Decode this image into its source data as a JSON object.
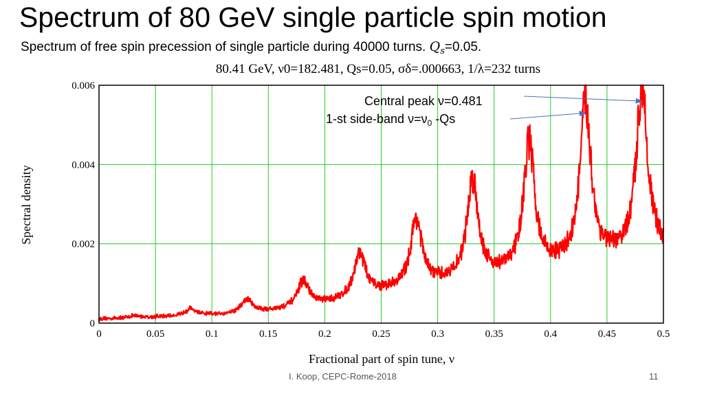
{
  "slide": {
    "title": "Spectrum of 80 GeV single particle spin motion",
    "subtitle_text": "Spectrum of free spin precession of single particle during 40000 turns.",
    "subtitle_qs": "Q",
    "subtitle_qs_sub": "s",
    "subtitle_qs_value": "=0.05.",
    "footer": "I. Koop, CEPC-Rome-2018",
    "page_number": "11"
  },
  "annotations": {
    "central_peak": "Central peak ν=0.481",
    "side_band_prefix": "1-st side-band ν=ν",
    "side_band_sub": "0",
    "side_band_suffix": " -Qs"
  },
  "chart_data": {
    "type": "line",
    "title": "80.41 GeV, ν0=182.481, Qs=0.05, σδ=.000663, 1/λ=232 turns",
    "xlabel": "Fractional part of spin tune, ν",
    "ylabel": "Spectral density",
    "xlim": [
      0,
      0.5
    ],
    "ylim": [
      0,
      0.006
    ],
    "x_ticks": [
      "0",
      "0.05",
      "0.1",
      "0.15",
      "0.2",
      "0.25",
      "0.3",
      "0.35",
      "0.4",
      "0.45",
      "0.5"
    ],
    "y_ticks": [
      "0",
      "0.002",
      "0.004",
      "0.006"
    ],
    "grid": true,
    "series": [
      {
        "color": "#ff0000",
        "peaks": [
          {
            "x": 0.031,
            "y": 0.00018
          },
          {
            "x": 0.081,
            "y": 0.00035
          },
          {
            "x": 0.131,
            "y": 0.00058
          },
          {
            "x": 0.181,
            "y": 0.00105
          },
          {
            "x": 0.231,
            "y": 0.00175
          },
          {
            "x": 0.281,
            "y": 0.0026
          },
          {
            "x": 0.331,
            "y": 0.0036
          },
          {
            "x": 0.381,
            "y": 0.0045
          },
          {
            "x": 0.431,
            "y": 0.0055
          },
          {
            "x": 0.481,
            "y": 0.006
          }
        ],
        "valleys": [
          {
            "x": 0.0,
            "y": 0.0001
          },
          {
            "x": 0.056,
            "y": 0.00015
          },
          {
            "x": 0.106,
            "y": 0.0002
          },
          {
            "x": 0.156,
            "y": 0.0003
          },
          {
            "x": 0.206,
            "y": 0.0005
          },
          {
            "x": 0.256,
            "y": 0.0008
          },
          {
            "x": 0.306,
            "y": 0.001
          },
          {
            "x": 0.356,
            "y": 0.0012
          },
          {
            "x": 0.406,
            "y": 0.0014
          },
          {
            "x": 0.456,
            "y": 0.0016
          },
          {
            "x": 0.5,
            "y": 0.0018
          }
        ]
      }
    ],
    "arrows": [
      {
        "label": "central_peak",
        "target": {
          "x": 0.481,
          "y": 0.0056
        }
      },
      {
        "label": "side_band",
        "target": {
          "x": 0.431,
          "y": 0.0053
        }
      }
    ]
  }
}
